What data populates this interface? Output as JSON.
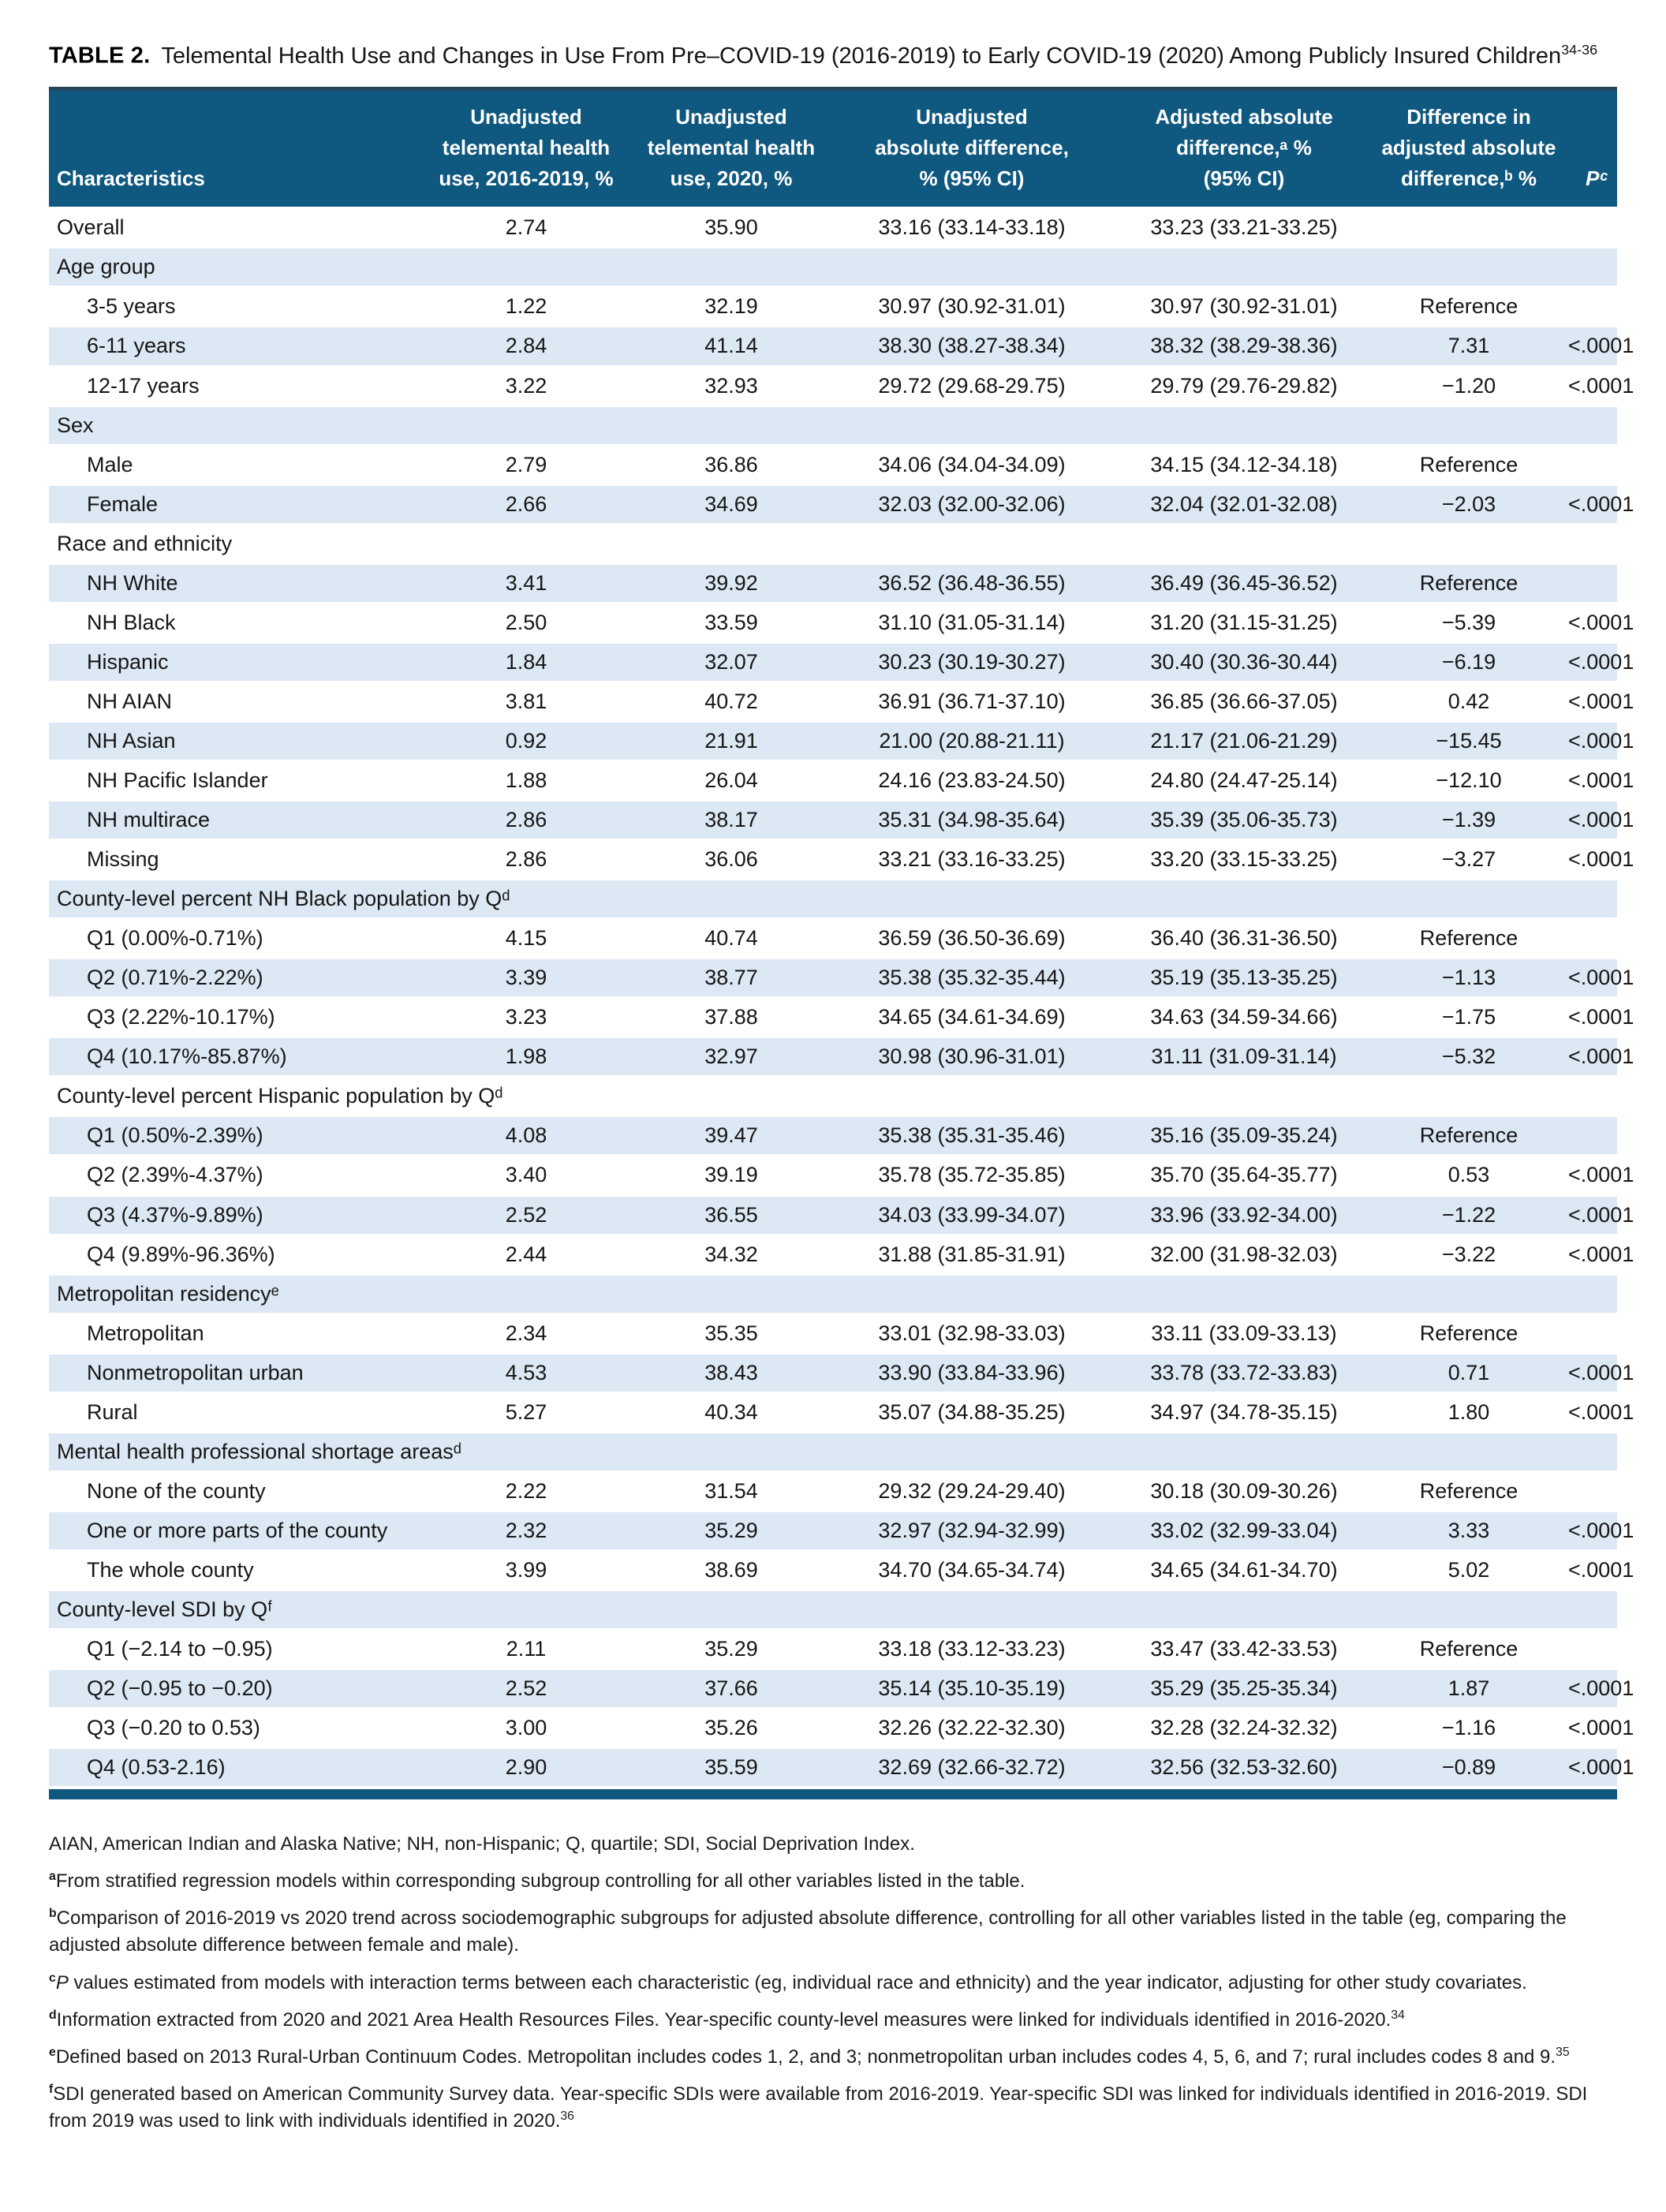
{
  "title": {
    "label": "TABLE 2.",
    "text": "Telemental Health Use and Changes in Use From Pre–COVID-19 (2016-2019) to Early COVID-19 (2020) Among Publicly Insured Children",
    "superscript": "34-36"
  },
  "colors": {
    "header_bg": "#0F587F",
    "top_border": "#27475C",
    "stripe": "#DCE8F4",
    "bottom_bar": "#0F587F"
  },
  "table": {
    "columns": [
      {
        "label": "Characteristics"
      },
      {
        "label": "Unadjusted\ntelemental health\nuse, 2016-2019, %"
      },
      {
        "label": "Unadjusted\ntelemental health\nuse, 2020, %"
      },
      {
        "label": "Unadjusted\nabsolute difference,\n% (95% CI)"
      },
      {
        "label": "Adjusted absolute\ndifference,ᵃ %\n(95% CI)"
      },
      {
        "label": "Difference in\nadjusted absolute\ndifference,ᵇ %"
      },
      {
        "label": "Pᶜ"
      }
    ],
    "rows": [
      {
        "label": "Overall",
        "indent": false,
        "v": [
          "2.74",
          "35.90",
          "33.16 (33.14-33.18)",
          "33.23 (33.21-33.25)",
          "",
          ""
        ]
      },
      {
        "section": true,
        "label": "Age group"
      },
      {
        "label": "3-5 years",
        "indent": true,
        "v": [
          "1.22",
          "32.19",
          "30.97 (30.92-31.01)",
          "30.97 (30.92-31.01)",
          "Reference",
          ""
        ]
      },
      {
        "label": "6-11 years",
        "indent": true,
        "v": [
          "2.84",
          "41.14",
          "38.30 (38.27-38.34)",
          "38.32 (38.29-38.36)",
          "7.31",
          "<.0001"
        ]
      },
      {
        "label": "12-17 years",
        "indent": true,
        "v": [
          "3.22",
          "32.93",
          "29.72 (29.68-29.75)",
          "29.79 (29.76-29.82)",
          "−1.20",
          "<.0001"
        ]
      },
      {
        "section": true,
        "label": "Sex"
      },
      {
        "label": "Male",
        "indent": true,
        "v": [
          "2.79",
          "36.86",
          "34.06 (34.04-34.09)",
          "34.15 (34.12-34.18)",
          "Reference",
          ""
        ]
      },
      {
        "label": "Female",
        "indent": true,
        "v": [
          "2.66",
          "34.69",
          "32.03 (32.00-32.06)",
          "32.04 (32.01-32.08)",
          "−2.03",
          "<.0001"
        ]
      },
      {
        "section": true,
        "label": "Race and ethnicity"
      },
      {
        "label": "NH White",
        "indent": true,
        "v": [
          "3.41",
          "39.92",
          "36.52 (36.48-36.55)",
          "36.49 (36.45-36.52)",
          "Reference",
          ""
        ]
      },
      {
        "label": "NH Black",
        "indent": true,
        "v": [
          "2.50",
          "33.59",
          "31.10 (31.05-31.14)",
          "31.20 (31.15-31.25)",
          "−5.39",
          "<.0001"
        ]
      },
      {
        "label": "Hispanic",
        "indent": true,
        "v": [
          "1.84",
          "32.07",
          "30.23 (30.19-30.27)",
          "30.40 (30.36-30.44)",
          "−6.19",
          "<.0001"
        ]
      },
      {
        "label": "NH AIAN",
        "indent": true,
        "v": [
          "3.81",
          "40.72",
          "36.91 (36.71-37.10)",
          "36.85 (36.66-37.05)",
          "0.42",
          "<.0001"
        ]
      },
      {
        "label": "NH Asian",
        "indent": true,
        "v": [
          "0.92",
          "21.91",
          "21.00 (20.88-21.11)",
          "21.17 (21.06-21.29)",
          "−15.45",
          "<.0001"
        ]
      },
      {
        "label": "NH Pacific Islander",
        "indent": true,
        "v": [
          "1.88",
          "26.04",
          "24.16 (23.83-24.50)",
          "24.80 (24.47-25.14)",
          "−12.10",
          "<.0001"
        ]
      },
      {
        "label": "NH multirace",
        "indent": true,
        "v": [
          "2.86",
          "38.17",
          "35.31 (34.98-35.64)",
          "35.39 (35.06-35.73)",
          "−1.39",
          "<.0001"
        ]
      },
      {
        "label": "Missing",
        "indent": true,
        "v": [
          "2.86",
          "36.06",
          "33.21 (33.16-33.25)",
          "33.20 (33.15-33.25)",
          "−3.27",
          "<.0001"
        ]
      },
      {
        "section": true,
        "label": "County-level percent NH Black population by Qᵈ"
      },
      {
        "label": "Q1 (0.00%-0.71%)",
        "indent": true,
        "v": [
          "4.15",
          "40.74",
          "36.59 (36.50-36.69)",
          "36.40 (36.31-36.50)",
          "Reference",
          ""
        ]
      },
      {
        "label": "Q2 (0.71%-2.22%)",
        "indent": true,
        "v": [
          "3.39",
          "38.77",
          "35.38 (35.32-35.44)",
          "35.19 (35.13-35.25)",
          "−1.13",
          "<.0001"
        ]
      },
      {
        "label": "Q3 (2.22%-10.17%)",
        "indent": true,
        "v": [
          "3.23",
          "37.88",
          "34.65 (34.61-34.69)",
          "34.63 (34.59-34.66)",
          "−1.75",
          "<.0001"
        ]
      },
      {
        "label": "Q4 (10.17%-85.87%)",
        "indent": true,
        "v": [
          "1.98",
          "32.97",
          "30.98 (30.96-31.01)",
          "31.11 (31.09-31.14)",
          "−5.32",
          "<.0001"
        ]
      },
      {
        "section": true,
        "label": "County-level percent Hispanic population by Qᵈ"
      },
      {
        "label": "Q1 (0.50%-2.39%)",
        "indent": true,
        "v": [
          "4.08",
          "39.47",
          "35.38 (35.31-35.46)",
          "35.16 (35.09-35.24)",
          "Reference",
          ""
        ]
      },
      {
        "label": "Q2 (2.39%-4.37%)",
        "indent": true,
        "v": [
          "3.40",
          "39.19",
          "35.78 (35.72-35.85)",
          "35.70 (35.64-35.77)",
          "0.53",
          "<.0001"
        ]
      },
      {
        "label": "Q3 (4.37%-9.89%)",
        "indent": true,
        "v": [
          "2.52",
          "36.55",
          "34.03 (33.99-34.07)",
          "33.96 (33.92-34.00)",
          "−1.22",
          "<.0001"
        ]
      },
      {
        "label": "Q4 (9.89%-96.36%)",
        "indent": true,
        "v": [
          "2.44",
          "34.32",
          "31.88 (31.85-31.91)",
          "32.00 (31.98-32.03)",
          "−3.22",
          "<.0001"
        ]
      },
      {
        "section": true,
        "label": "Metropolitan residencyᵉ"
      },
      {
        "label": "Metropolitan",
        "indent": true,
        "v": [
          "2.34",
          "35.35",
          "33.01 (32.98-33.03)",
          "33.11 (33.09-33.13)",
          "Reference",
          ""
        ]
      },
      {
        "label": "Nonmetropolitan urban",
        "indent": true,
        "v": [
          "4.53",
          "38.43",
          "33.90 (33.84-33.96)",
          "33.78 (33.72-33.83)",
          "0.71",
          "<.0001"
        ]
      },
      {
        "label": "Rural",
        "indent": true,
        "v": [
          "5.27",
          "40.34",
          "35.07 (34.88-35.25)",
          "34.97 (34.78-35.15)",
          "1.80",
          "<.0001"
        ]
      },
      {
        "section": true,
        "label": "Mental health professional shortage areasᵈ"
      },
      {
        "label": "None of the county",
        "indent": true,
        "v": [
          "2.22",
          "31.54",
          "29.32 (29.24-29.40)",
          "30.18 (30.09-30.26)",
          "Reference",
          ""
        ]
      },
      {
        "label": "One or more parts of the county",
        "indent": true,
        "v": [
          "2.32",
          "35.29",
          "32.97 (32.94-32.99)",
          "33.02 (32.99-33.04)",
          "3.33",
          "<.0001"
        ]
      },
      {
        "label": "The whole county",
        "indent": true,
        "v": [
          "3.99",
          "38.69",
          "34.70 (34.65-34.74)",
          "34.65 (34.61-34.70)",
          "5.02",
          "<.0001"
        ]
      },
      {
        "section": true,
        "label": "County-level SDI by Qᶠ"
      },
      {
        "label": "Q1 (−2.14 to −0.95)",
        "indent": true,
        "v": [
          "2.11",
          "35.29",
          "33.18 (33.12-33.23)",
          "33.47 (33.42-33.53)",
          "Reference",
          ""
        ]
      },
      {
        "label": "Q2 (−0.95 to −0.20)",
        "indent": true,
        "v": [
          "2.52",
          "37.66",
          "35.14 (35.10-35.19)",
          "35.29 (35.25-35.34)",
          "1.87",
          "<.0001"
        ]
      },
      {
        "label": "Q3 (−0.20 to 0.53)",
        "indent": true,
        "v": [
          "3.00",
          "35.26",
          "32.26 (32.22-32.30)",
          "32.28 (32.24-32.32)",
          "−1.16",
          "<.0001"
        ]
      },
      {
        "label": "Q4 (0.53-2.16)",
        "indent": true,
        "v": [
          "2.90",
          "35.59",
          "32.69 (32.66-32.72)",
          "32.56 (32.53-32.60)",
          "−0.89",
          "<.0001"
        ]
      }
    ]
  },
  "footnotes": [
    {
      "text": "AIAN, American Indian and Alaska Native; NH, non-Hispanic; Q, quartile; SDI, Social Deprivation Index."
    },
    {
      "sup": "a",
      "text": "From stratified regression models within corresponding subgroup controlling for all other variables listed in the table."
    },
    {
      "sup": "b",
      "text": "Comparison of 2016-2019 vs 2020 trend across sociodemographic subgroups for adjusted absolute difference, controlling for all other variables listed in the table (eg, comparing the adjusted absolute difference between female and male)."
    },
    {
      "sup": "c",
      "italic_lead": "P",
      "text": " values estimated from models with interaction terms between each characteristic (eg, individual race and ethnicity) and the year indicator, adjusting for other study covariates."
    },
    {
      "sup": "d",
      "text": "Information extracted from 2020 and 2021 Area Health Resources Files. Year-specific county-level measures were linked for individuals identified in 2016-2020.",
      "end_sup": "34"
    },
    {
      "sup": "e",
      "text": "Defined based on 2013 Rural-Urban Continuum Codes. Metropolitan includes codes 1, 2, and 3; nonmetropolitan urban includes codes 4, 5, 6, and 7; rural includes codes 8 and 9.",
      "end_sup": "35"
    },
    {
      "sup": "f",
      "text": "SDI generated based on American Community Survey data. Year-specific SDIs were available from 2016-2019. Year-specific SDI was linked for individuals identified in 2016-2019. SDI from 2019 was used to link with individuals identified in 2020.",
      "end_sup": "36"
    }
  ]
}
